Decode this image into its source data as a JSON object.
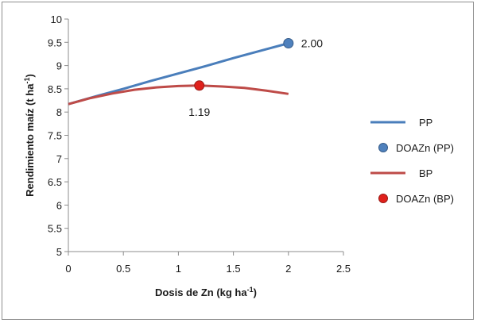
{
  "chart_data": {
    "type": "line",
    "title": "",
    "xlabel": {
      "main": "Dosis de Zn (kg ha",
      "sup": "-1",
      "end": ")"
    },
    "ylabel": {
      "main": "Rendimiento maíz (t ha",
      "sup": "-1",
      "end": ")"
    },
    "xlim": [
      0,
      2.5
    ],
    "ylim": [
      5,
      10
    ],
    "x_ticks": [
      "0",
      "0.5",
      "1",
      "1.5",
      "2",
      "2.5"
    ],
    "y_ticks": [
      "5",
      "5.5",
      "6",
      "6.5",
      "7",
      "7.5",
      "8",
      "8.5",
      "9",
      "9.5",
      "10"
    ],
    "x_tick_values": [
      0,
      0.5,
      1,
      1.5,
      2,
      2.5
    ],
    "y_tick_values": [
      5,
      5.5,
      6,
      6.5,
      7,
      7.5,
      8,
      8.5,
      9,
      9.5,
      10
    ],
    "grid": false,
    "legend_placement": "right",
    "series": [
      {
        "name": "PP",
        "kind": "line",
        "color": "#4a7ebb",
        "x": [
          0,
          0.25,
          0.5,
          0.75,
          1,
          1.25,
          1.5,
          1.75,
          2
        ],
        "y": [
          8.17,
          8.34,
          8.5,
          8.67,
          8.83,
          8.99,
          9.16,
          9.32,
          9.48
        ]
      },
      {
        "name": "DOAZn (PP)",
        "kind": "point",
        "color": "#4f81bd",
        "x": [
          2.0
        ],
        "y": [
          9.48
        ],
        "label": "2.00"
      },
      {
        "name": "BP",
        "kind": "line",
        "color": "#be4b48",
        "x": [
          0,
          0.2,
          0.4,
          0.6,
          0.8,
          1.0,
          1.19,
          1.4,
          1.6,
          1.8,
          2.0
        ],
        "y": [
          8.17,
          8.3,
          8.4,
          8.48,
          8.53,
          8.56,
          8.57,
          8.55,
          8.52,
          8.46,
          8.39
        ]
      },
      {
        "name": "DOAZn (BP)",
        "kind": "point",
        "color": "#e0201b",
        "x": [
          1.19
        ],
        "y": [
          8.57
        ],
        "label": "1.19"
      }
    ]
  }
}
